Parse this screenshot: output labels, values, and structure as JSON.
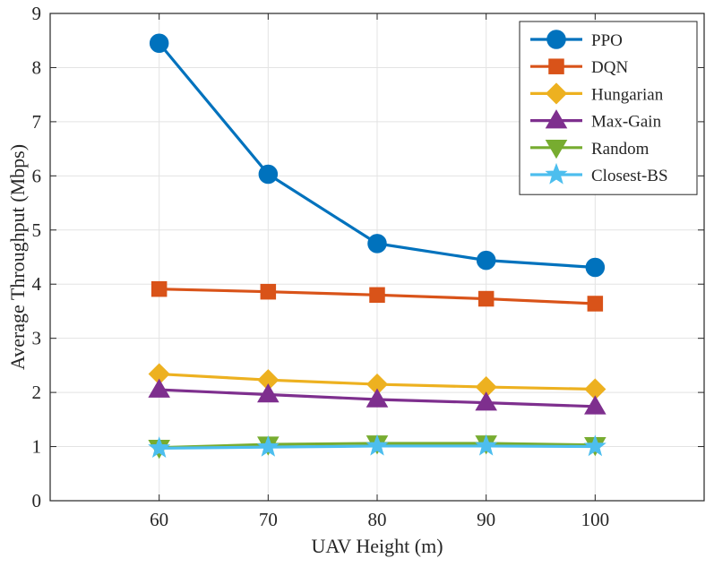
{
  "chart_data": {
    "type": "line",
    "title": "",
    "xlabel": "UAV Height (m)",
    "ylabel": "Average Throughput (Mbps)",
    "x": [
      60,
      70,
      80,
      90,
      100
    ],
    "xlim": [
      50,
      110
    ],
    "ylim": [
      0,
      9
    ],
    "xticks": [
      "60",
      "70",
      "80",
      "90",
      "100"
    ],
    "yticks": [
      "0",
      "1",
      "2",
      "3",
      "4",
      "5",
      "6",
      "7",
      "8",
      "9"
    ],
    "grid": true,
    "legend_position": "top-right",
    "series": [
      {
        "name": "PPO",
        "color": "#0072BD",
        "marker": "circle",
        "values": [
          8.45,
          6.03,
          4.75,
          4.44,
          4.31
        ]
      },
      {
        "name": "DQN",
        "color": "#D95319",
        "marker": "square",
        "values": [
          3.91,
          3.86,
          3.8,
          3.73,
          3.64
        ]
      },
      {
        "name": "Hungarian",
        "color": "#EDB120",
        "marker": "diamond",
        "values": [
          2.34,
          2.23,
          2.15,
          2.1,
          2.06
        ]
      },
      {
        "name": "Max-Gain",
        "color": "#7E2F8E",
        "marker": "triangle-up",
        "values": [
          2.05,
          1.96,
          1.87,
          1.81,
          1.74
        ]
      },
      {
        "name": "Random",
        "color": "#77AC30",
        "marker": "triangle-down",
        "values": [
          0.98,
          1.04,
          1.06,
          1.06,
          1.03
        ]
      },
      {
        "name": "Closest-BS",
        "color": "#4DBEEE",
        "marker": "star",
        "values": [
          0.97,
          0.99,
          1.01,
          1.01,
          1.0
        ]
      }
    ]
  }
}
